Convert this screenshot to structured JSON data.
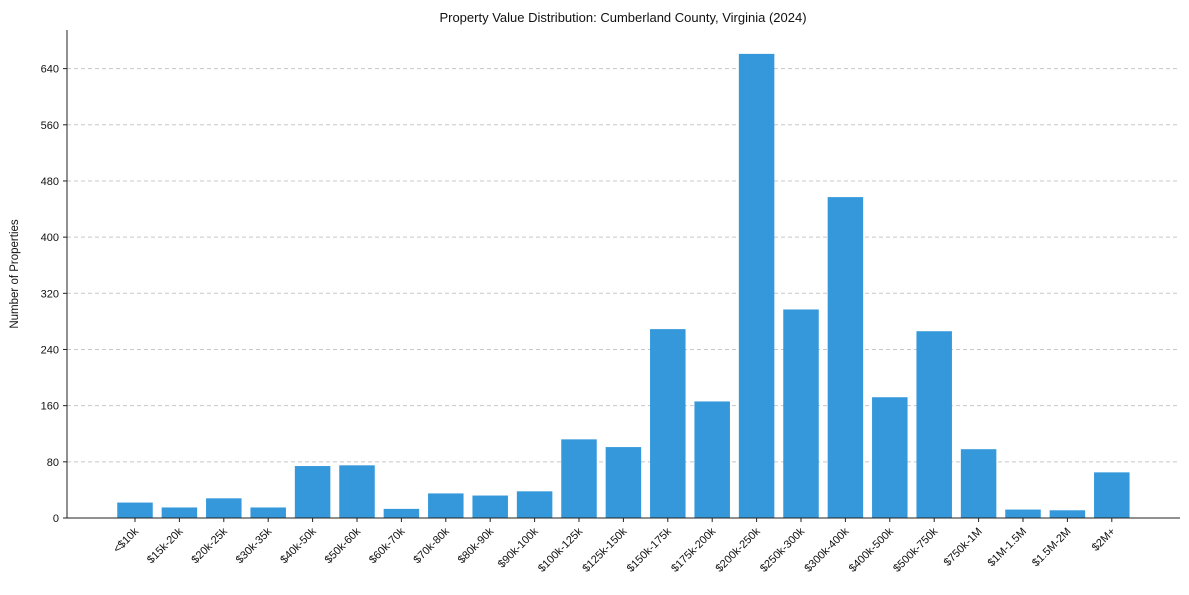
{
  "chart_data": {
    "type": "bar",
    "title": "Property Value Distribution: Cumberland County, Virginia (2024)",
    "xlabel": "",
    "ylabel": "Number of Properties",
    "ylim": [
      0,
      695
    ],
    "yticks": [
      0,
      80,
      160,
      240,
      320,
      400,
      480,
      560,
      640
    ],
    "grid": "y-dashed",
    "bar_color": "#3498db",
    "categories": [
      "<$10k",
      "$15k-20k",
      "$20k-25k",
      "$30k-35k",
      "$40k-50k",
      "$50k-60k",
      "$60k-70k",
      "$70k-80k",
      "$80k-90k",
      "$90k-100k",
      "$100k-125k",
      "$125k-150k",
      "$150k-175k",
      "$175k-200k",
      "$200k-250k",
      "$250k-300k",
      "$300k-400k",
      "$400k-500k",
      "$500k-750k",
      "$750k-1M",
      "$1M-1.5M",
      "$1.5M-2M",
      "$2M+"
    ],
    "values": [
      22,
      15,
      28,
      15,
      74,
      75,
      13,
      35,
      32,
      38,
      112,
      101,
      269,
      166,
      661,
      297,
      457,
      172,
      266,
      98,
      12,
      11,
      65
    ]
  }
}
